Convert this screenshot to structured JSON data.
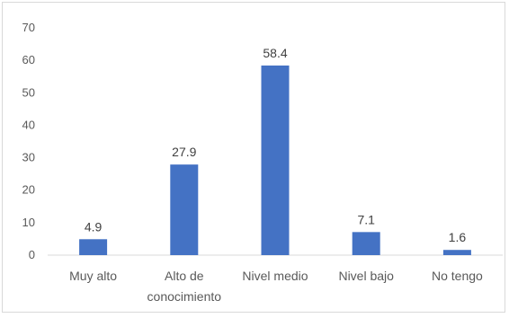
{
  "chart_data": {
    "type": "bar",
    "categories": [
      "Muy alto",
      "Alto de conocimiento",
      "Nivel medio",
      "Nivel bajo",
      "No tengo"
    ],
    "category_lines": [
      [
        "Muy alto"
      ],
      [
        "Alto de",
        "conocimiento"
      ],
      [
        "Nivel medio"
      ],
      [
        "Nivel bajo"
      ],
      [
        "No tengo"
      ]
    ],
    "values": [
      4.9,
      27.9,
      58.4,
      7.1,
      1.6
    ],
    "data_labels": [
      "4.9",
      "27.9",
      "58.4",
      "7.1",
      "1.6"
    ],
    "ylim": [
      0,
      70
    ],
    "yticks": [
      0,
      10,
      20,
      30,
      40,
      50,
      60,
      70
    ],
    "grid": false,
    "bar_color": "#4472c4"
  }
}
